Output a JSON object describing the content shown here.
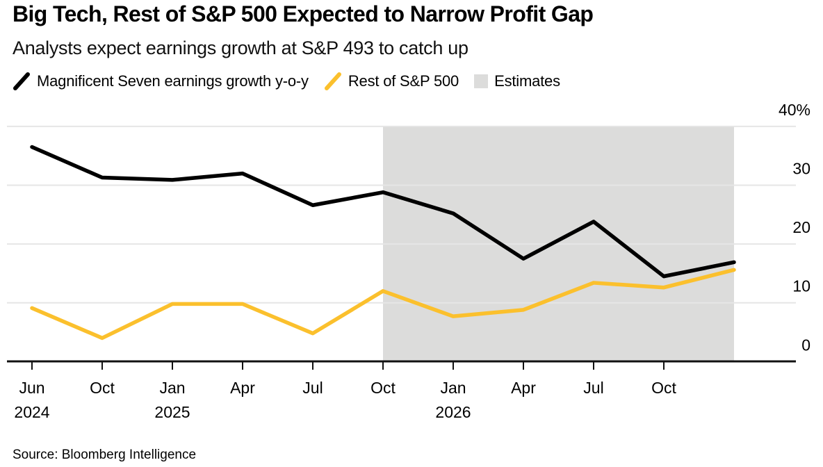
{
  "header": {
    "title": "Big Tech, Rest of S&P 500 Expected to Narrow Profit Gap",
    "subtitle": "Analysts expect earnings growth at S&P 493 to catch up"
  },
  "legend": {
    "items": [
      {
        "label": "Magnificent Seven earnings growth y-o-y",
        "swatch": "black-slash-icon",
        "color_key": "mag7"
      },
      {
        "label": "Rest of S&P 500",
        "swatch": "yellow-slash-icon",
        "color_key": "rest"
      },
      {
        "label": "Estimates",
        "swatch": "gray-square-icon",
        "color_key": "estimates_band"
      }
    ]
  },
  "source": {
    "text": "Source: Bloomberg Intelligence"
  },
  "colors": {
    "mag7": "#000000",
    "rest": "#FBC02D",
    "estimates_band": "#DCDCDB",
    "gridline": "#E6E6E6",
    "axis": "#111111"
  },
  "chart_data": {
    "type": "line",
    "title": "Big Tech, Rest of S&P 500 Expected to Narrow Profit Gap",
    "subtitle": "Analysts expect earnings growth at S&P 493 to catch up",
    "xlabel": "",
    "ylabel": "",
    "unit": "%",
    "grid": true,
    "legend_position": "top",
    "ylim": [
      0,
      40
    ],
    "y_ticks": [
      0,
      10,
      20,
      30,
      40
    ],
    "y_tick_labels": [
      "0",
      "10",
      "20",
      "30",
      "40%"
    ],
    "categories": [
      {
        "month": "Jun",
        "year": "2024"
      },
      {
        "month": "Oct",
        "year": ""
      },
      {
        "month": "Jan",
        "year": "2025"
      },
      {
        "month": "Apr",
        "year": ""
      },
      {
        "month": "Jul",
        "year": ""
      },
      {
        "month": "Oct",
        "year": ""
      },
      {
        "month": "Jan",
        "year": "2026"
      },
      {
        "month": "Apr",
        "year": ""
      },
      {
        "month": "Jul",
        "year": ""
      },
      {
        "month": "Oct",
        "year": ""
      }
    ],
    "n_points": 11,
    "series": [
      {
        "name": "Magnificent Seven earnings growth y-o-y",
        "color_key": "mag7",
        "values": [
          36.5,
          31.3,
          30.9,
          32.0,
          26.6,
          28.8,
          25.2,
          17.5,
          23.8,
          14.5,
          16.9
        ]
      },
      {
        "name": "Rest of S&P 500",
        "color_key": "rest",
        "values": [
          9.1,
          4.0,
          9.8,
          9.8,
          4.8,
          12.0,
          7.7,
          8.8,
          13.4,
          12.6,
          15.6
        ]
      }
    ],
    "estimates_region": {
      "label": "Estimates",
      "start_index": 5,
      "end_index": 10
    }
  }
}
